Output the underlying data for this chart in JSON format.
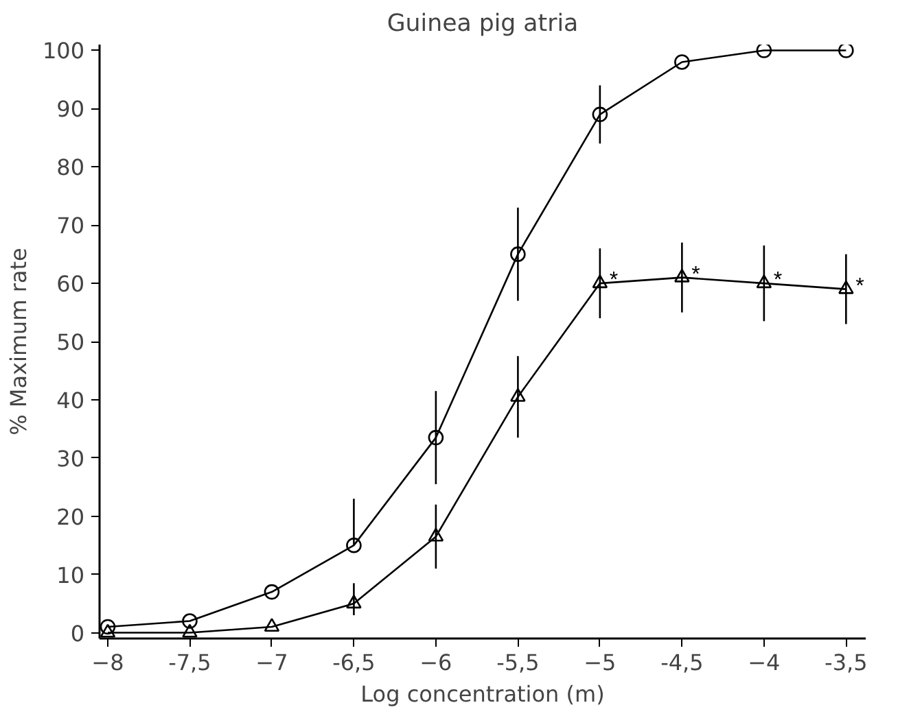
{
  "chart_data": {
    "type": "line",
    "title": "Guinea pig atria",
    "xlabel": "Log concentration (m)",
    "ylabel": "% Maximum rate",
    "x": [
      -8,
      -7.5,
      -7,
      -6.5,
      -6,
      -5.5,
      -5,
      -4.5,
      -4,
      -3.5
    ],
    "series": [
      {
        "color": "#000000",
        "marker": "circle",
        "values": [
          1,
          2,
          7,
          15,
          33.5,
          65,
          89,
          98,
          100,
          100
        ],
        "errors": [
          null,
          null,
          null,
          [
            15,
            23
          ],
          8,
          8,
          5,
          null,
          null,
          null
        ]
      },
      {
        "color": "#000000",
        "marker": "triangle",
        "values": [
          0,
          0,
          1,
          5,
          16.5,
          40.5,
          60,
          61,
          60,
          59
        ],
        "errors": [
          null,
          null,
          null,
          [
            3,
            8.5
          ],
          5.5,
          7,
          6,
          6,
          6.5,
          6
        ]
      }
    ],
    "annotations": [
      {
        "text": "*",
        "x": -5,
        "y": 60
      },
      {
        "text": "*",
        "x": -4.5,
        "y": 61
      },
      {
        "text": "*",
        "x": -4,
        "y": 60
      },
      {
        "text": "*",
        "x": -3.5,
        "y": 59
      }
    ],
    "xlim": [
      -8.05,
      -3.38
    ],
    "ylim": [
      -1,
      101
    ],
    "xticks": [
      -8,
      {
        "value": -7.5,
        "label": "-7,5"
      },
      -7,
      {
        "value": -6.5,
        "label": "-6,5"
      },
      -6,
      {
        "value": -5.5,
        "label": "-5,5"
      },
      -5,
      {
        "value": -4.5,
        "label": "-4,5"
      },
      -4,
      {
        "value": -3.5,
        "label": "-3,5"
      }
    ],
    "yticks": [
      0,
      10,
      20,
      30,
      40,
      50,
      60,
      70,
      80,
      90,
      100
    ],
    "grid": false,
    "line_style": "solid"
  }
}
